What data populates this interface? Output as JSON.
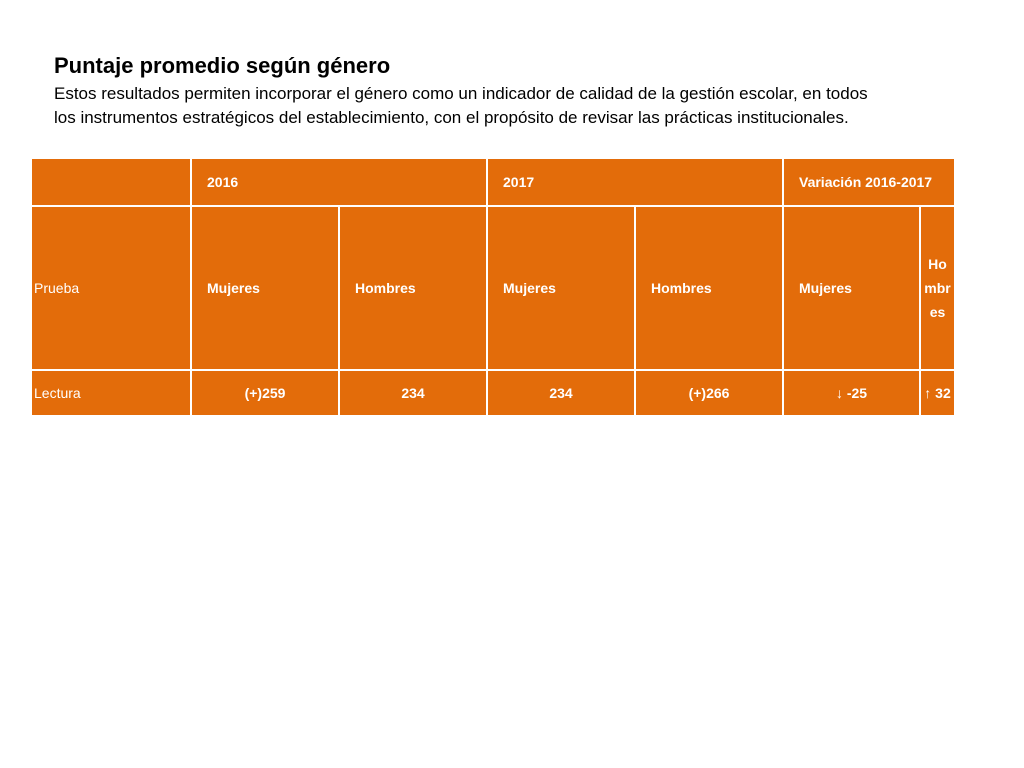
{
  "slide": {
    "title": "Puntaje promedio según género",
    "subtitle_line1": "Estos resultados permiten incorporar el género como un indicador de calidad de la gestión escolar, en todos",
    "subtitle_line2": "los instrumentos estratégicos del establecimiento, con el propósito de revisar las prácticas institucionales."
  },
  "table": {
    "colors": {
      "cell_bg": "#e36c0a",
      "text": "#ffffff",
      "border": "#ffffff"
    },
    "year_headers": {
      "blank": "",
      "y2016": "2016",
      "y2017": "2017",
      "variation": "Variación 2016-2017"
    },
    "column_headers": {
      "prueba": "Prueba",
      "mujeres_2016": "Mujeres",
      "hombres_2016": "Hombres",
      "mujeres_2017": "Mujeres",
      "hombres_2017": "Hombres",
      "mujeres_var": "Mujeres",
      "hombres_var": "Hombres"
    },
    "rows": [
      {
        "prueba": "Lectura",
        "mujeres_2016": "(+)259",
        "hombres_2016": "234",
        "mujeres_2017": "234",
        "hombres_2017": "(+)266",
        "mujeres_var": "↓ -25",
        "hombres_var": "↑ 32"
      }
    ]
  }
}
